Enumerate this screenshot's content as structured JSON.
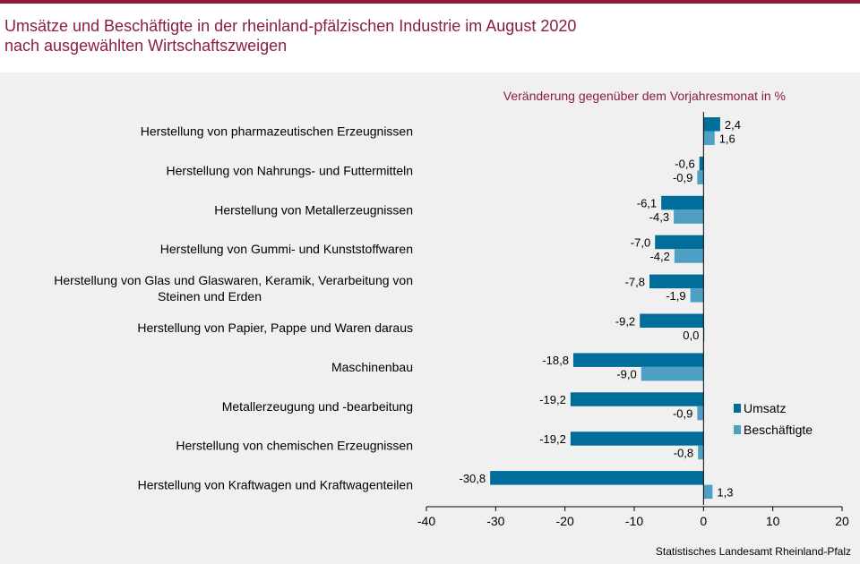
{
  "title_line1": "Umsätze und Beschäftigte in der rheinland-pfälzischen Industrie im August 2020",
  "title_line2": "nach ausgewählten Wirtschaftszweigen",
  "source": "Statistisches Landesamt Rheinland-Pfalz",
  "colors": {
    "accent": "#8c1e3c",
    "panel": "#f0f0f0",
    "umsatz": "#006e9a",
    "beschaeftigte": "#4e9fc4"
  },
  "chart_data": {
    "type": "bar",
    "orientation": "horizontal",
    "unit_label": "Veränderung gegenüber dem Vorjahresmonat in %",
    "categories": [
      [
        "Herstellung von pharmazeutischen Erzeugnissen"
      ],
      [
        "Herstellung von Nahrungs- und Futtermitteln"
      ],
      [
        "Herstellung von Metallerzeugnissen"
      ],
      [
        "Herstellung von Gummi- und Kunststoffwaren"
      ],
      [
        "Herstellung von Glas und Glaswaren, Keramik, Verarbeitung von",
        "Steinen und Erden"
      ],
      [
        "Herstellung von Papier, Pappe und Waren daraus"
      ],
      [
        "Maschinenbau"
      ],
      [
        "Metallerzeugung und -bearbeitung"
      ],
      [
        "Herstellung von chemischen Erzeugnissen"
      ],
      [
        "Herstellung von Kraftwagen und Kraftwagenteilen"
      ]
    ],
    "series": [
      {
        "name": "Umsatz",
        "values": [
          2.4,
          -0.6,
          -6.1,
          -7.0,
          -7.8,
          -9.2,
          -18.8,
          -19.2,
          -19.2,
          -30.8
        ],
        "labels": [
          "2,4",
          "-0,6",
          "-6,1",
          "-7,0",
          "-7,8",
          "-9,2",
          "-18,8",
          "-19,2",
          "-19,2",
          "-30,8"
        ]
      },
      {
        "name": "Beschäftigte",
        "values": [
          1.6,
          -0.9,
          -4.3,
          -4.2,
          -1.9,
          0.0,
          -9.0,
          -0.9,
          -0.8,
          1.3
        ],
        "labels": [
          "1,6",
          "-0,9",
          "-4,3",
          "-4,2",
          "-1,9",
          "0,0",
          "-9,0",
          "-0,9",
          "-0,8",
          "1,3"
        ]
      }
    ],
    "xlim": [
      -40,
      20
    ],
    "xticks": [
      -40,
      -30,
      -20,
      -10,
      0,
      10,
      20
    ],
    "grid": false,
    "legend_position": "right"
  }
}
